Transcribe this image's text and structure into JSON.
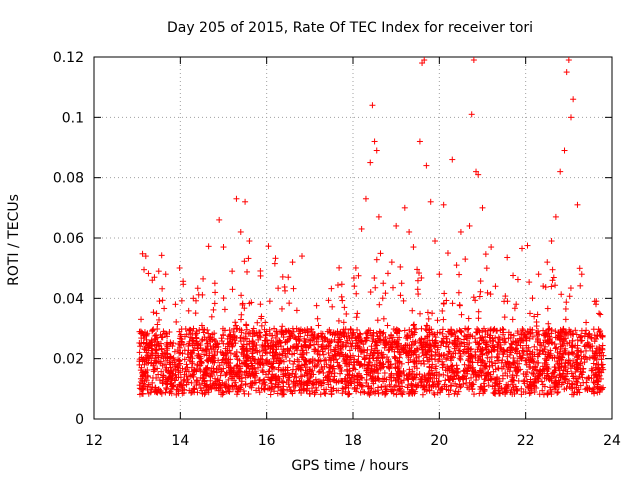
{
  "chart_data": {
    "type": "scatter",
    "title": "Day 205 of 2015, Rate Of TEC Index for receiver tori",
    "xlabel": "GPS time / hours",
    "ylabel": "ROTI / TECUs",
    "xlim": [
      12,
      24
    ],
    "ylim": [
      0,
      0.12
    ],
    "grid": true,
    "legend": "none",
    "marker": "plus",
    "x_ticks": [
      12,
      14,
      16,
      18,
      20,
      22,
      24
    ],
    "x_tick_labels": [
      "12",
      "14",
      "16",
      "18",
      "20",
      "22",
      "24"
    ],
    "y_ticks": [
      0,
      0.02,
      0.04,
      0.06,
      0.08,
      0.1,
      0.12
    ],
    "y_tick_labels": [
      "0",
      "0.02",
      "0.04",
      "0.06",
      "0.08",
      "0.1",
      "0.12"
    ],
    "series": [
      {
        "name": "ROTI",
        "color": "#ff0000",
        "points": [
          [
            13.1,
            0.017
          ],
          [
            13.2,
            0.054
          ],
          [
            13.25,
            0.014
          ],
          [
            13.3,
            0.021
          ],
          [
            13.35,
            0.046
          ],
          [
            13.4,
            0.047
          ],
          [
            13.45,
            0.035
          ],
          [
            13.5,
            0.049
          ],
          [
            13.55,
            0.019
          ],
          [
            13.6,
            0.012
          ],
          [
            13.7,
            0.024
          ],
          [
            13.8,
            0.016
          ],
          [
            13.9,
            0.018
          ],
          [
            14.0,
            0.022
          ],
          [
            14.1,
            0.013
          ],
          [
            14.2,
            0.025
          ],
          [
            14.3,
            0.04
          ],
          [
            14.4,
            0.018
          ],
          [
            14.5,
            0.031
          ],
          [
            14.6,
            0.015
          ],
          [
            14.7,
            0.027
          ],
          [
            14.8,
            0.045
          ],
          [
            14.9,
            0.066
          ],
          [
            15.0,
            0.057
          ],
          [
            15.1,
            0.024
          ],
          [
            15.2,
            0.049
          ],
          [
            15.3,
            0.073
          ],
          [
            15.4,
            0.062
          ],
          [
            15.5,
            0.072
          ],
          [
            15.6,
            0.059
          ],
          [
            15.7,
            0.03
          ],
          [
            15.8,
            0.017
          ],
          [
            15.9,
            0.021
          ],
          [
            16.0,
            0.029
          ],
          [
            16.1,
            0.018
          ],
          [
            16.2,
            0.014
          ],
          [
            16.3,
            0.026
          ],
          [
            16.4,
            0.019
          ],
          [
            16.5,
            0.047
          ],
          [
            16.6,
            0.052
          ],
          [
            16.7,
            0.036
          ],
          [
            16.8,
            0.024
          ],
          [
            16.9,
            0.016
          ],
          [
            17.0,
            0.019
          ],
          [
            17.2,
            0.031
          ],
          [
            17.4,
            0.014
          ],
          [
            17.6,
            0.023
          ],
          [
            17.8,
            0.037
          ],
          [
            17.9,
            0.012
          ],
          [
            18.0,
            0.021
          ],
          [
            18.1,
            0.035
          ],
          [
            18.2,
            0.063
          ],
          [
            18.3,
            0.073
          ],
          [
            18.4,
            0.085
          ],
          [
            18.45,
            0.104
          ],
          [
            18.5,
            0.092
          ],
          [
            18.55,
            0.089
          ],
          [
            18.6,
            0.067
          ],
          [
            18.7,
            0.045
          ],
          [
            18.8,
            0.031
          ],
          [
            18.9,
            0.052
          ],
          [
            19.0,
            0.064
          ],
          [
            19.1,
            0.041
          ],
          [
            19.2,
            0.07
          ],
          [
            19.3,
            0.062
          ],
          [
            19.4,
            0.057
          ],
          [
            19.5,
            0.043
          ],
          [
            19.55,
            0.092
          ],
          [
            19.6,
            0.118
          ],
          [
            19.65,
            0.119
          ],
          [
            19.7,
            0.084
          ],
          [
            19.8,
            0.072
          ],
          [
            19.9,
            0.059
          ],
          [
            20.0,
            0.048
          ],
          [
            20.1,
            0.071
          ],
          [
            20.2,
            0.055
          ],
          [
            20.3,
            0.086
          ],
          [
            20.4,
            0.051
          ],
          [
            20.5,
            0.062
          ],
          [
            20.6,
            0.053
          ],
          [
            20.7,
            0.064
          ],
          [
            20.75,
            0.101
          ],
          [
            20.8,
            0.119
          ],
          [
            20.85,
            0.082
          ],
          [
            20.9,
            0.081
          ],
          [
            21.0,
            0.07
          ],
          [
            21.1,
            0.05
          ],
          [
            21.2,
            0.057
          ],
          [
            21.3,
            0.044
          ],
          [
            21.5,
            0.039
          ],
          [
            21.7,
            0.033
          ],
          [
            21.9,
            0.028
          ],
          [
            22.1,
            0.035
          ],
          [
            22.3,
            0.048
          ],
          [
            22.5,
            0.052
          ],
          [
            22.6,
            0.059
          ],
          [
            22.7,
            0.067
          ],
          [
            22.8,
            0.082
          ],
          [
            22.9,
            0.089
          ],
          [
            22.95,
            0.115
          ],
          [
            23.0,
            0.119
          ],
          [
            23.05,
            0.1
          ],
          [
            23.1,
            0.106
          ],
          [
            23.2,
            0.071
          ],
          [
            23.3,
            0.048
          ],
          [
            23.4,
            0.032
          ],
          [
            23.5,
            0.024
          ],
          [
            23.6,
            0.039
          ],
          [
            23.7,
            0.035
          ],
          [
            23.8,
            0.021
          ]
        ]
      }
    ]
  }
}
